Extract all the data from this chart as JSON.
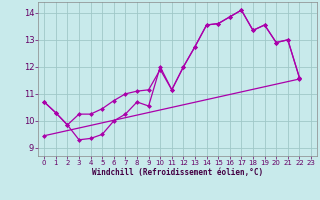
{
  "xlabel": "Windchill (Refroidissement éolien,°C)",
  "bg_color": "#c8eaeb",
  "grid_color": "#a0c8c8",
  "line_color": "#aa00aa",
  "xlim": [
    -0.5,
    23.5
  ],
  "ylim": [
    8.7,
    14.4
  ],
  "xticks": [
    0,
    1,
    2,
    3,
    4,
    5,
    6,
    7,
    8,
    9,
    10,
    11,
    12,
    13,
    14,
    15,
    16,
    17,
    18,
    19,
    20,
    21,
    22,
    23
  ],
  "yticks": [
    9,
    10,
    11,
    12,
    13,
    14
  ],
  "line1_x": [
    0,
    1,
    2,
    3,
    4,
    5,
    6,
    7,
    8,
    9,
    10,
    11,
    12,
    13,
    14,
    15,
    16,
    17,
    18,
    19,
    20,
    21,
    22
  ],
  "line1_y": [
    10.7,
    10.3,
    9.85,
    10.25,
    10.25,
    10.45,
    10.75,
    11.0,
    11.1,
    11.15,
    11.9,
    11.15,
    12.0,
    12.75,
    13.55,
    13.6,
    13.85,
    14.1,
    13.35,
    13.55,
    12.9,
    13.0,
    11.6
  ],
  "line2_x": [
    0,
    1,
    2,
    3,
    4,
    5,
    6,
    7,
    8,
    9,
    10,
    11,
    12,
    13,
    14,
    15,
    16,
    17,
    18,
    19,
    20,
    21,
    22
  ],
  "line2_y": [
    10.7,
    10.3,
    9.85,
    9.3,
    9.35,
    9.5,
    10.0,
    10.25,
    10.7,
    10.55,
    12.0,
    11.15,
    12.0,
    12.75,
    13.55,
    13.6,
    13.85,
    14.1,
    13.35,
    13.55,
    12.9,
    13.0,
    11.6
  ],
  "line3_x": [
    0,
    22
  ],
  "line3_y": [
    9.45,
    11.55
  ]
}
